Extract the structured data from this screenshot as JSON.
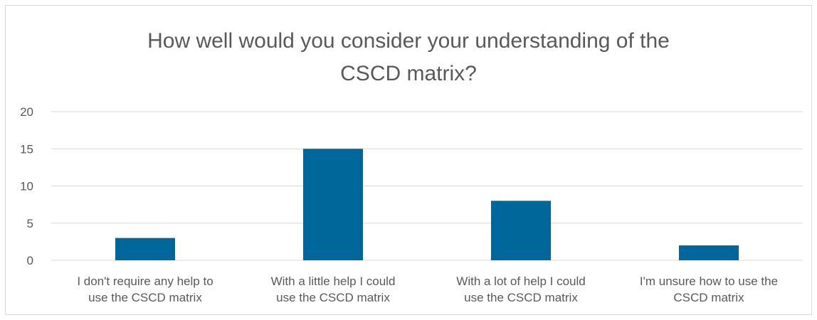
{
  "chart_data": {
    "type": "bar",
    "title": [
      "How well would you consider your understanding of the",
      "CSCD matrix?"
    ],
    "categories": [
      [
        "I don't require any help to",
        "use the CSCD matrix"
      ],
      [
        "With a little help I could",
        "use the CSCD matrix"
      ],
      [
        "With a lot of help I could",
        "use the CSCD matrix"
      ],
      [
        "I'm unsure how to use the",
        "CSCD matrix"
      ]
    ],
    "values": [
      3,
      15,
      8,
      2
    ],
    "ylim": [
      0,
      20
    ],
    "yticks": [
      "0",
      "5",
      "10",
      "15",
      "20"
    ],
    "grid": true,
    "legend": "none",
    "bar_color": "#00679a",
    "grid_color": "#d9d9d9",
    "text_color": "#595959"
  }
}
